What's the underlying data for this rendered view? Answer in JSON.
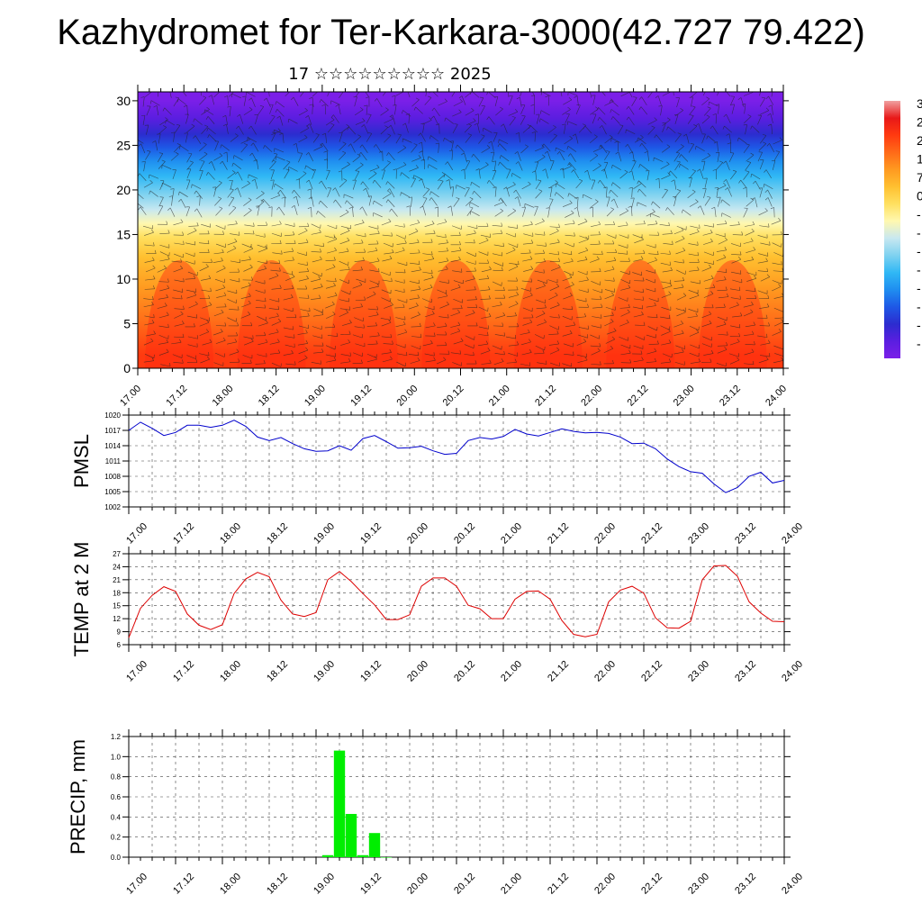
{
  "title": "Kazhydromet for Ter-Karkara-3000(42.727 79.422)",
  "subtitle": "17 ☆☆☆☆☆☆☆☆☆ 2025",
  "colors": {
    "pmsl_line": "#0000cc",
    "temp_line": "#dd0000",
    "precip_bar": "#00ee00",
    "colorbar": [
      "#7b1fe8",
      "#5a1ee0",
      "#2c2ccf",
      "#1e58e6",
      "#1f8ef0",
      "#30b8f5",
      "#7fd2f0",
      "#c8e8f0",
      "#fff8b0",
      "#ffe060",
      "#ffc030",
      "#ff9a20",
      "#ff6a18",
      "#ff3a10",
      "#e81818",
      "#f0a0a0"
    ]
  },
  "colorbar_labels": [
    "3",
    "2",
    "2",
    "1",
    "7",
    "0",
    "-",
    "-",
    "-",
    "-",
    "-",
    "-",
    "-",
    "-"
  ],
  "chart_data": [
    {
      "type": "heatmap",
      "title": "",
      "x_tick_labels": [
        "17.00",
        "17.12",
        "18.00",
        "18.12",
        "19.00",
        "19.12",
        "20.00",
        "20.12",
        "21.00",
        "21.12",
        "22.00",
        "22.12",
        "23.00",
        "23.12",
        "24.00"
      ],
      "y_ticks": [
        0,
        5,
        10,
        15,
        20,
        25,
        30
      ],
      "ylim": [
        0,
        31
      ],
      "note_layers": [
        {
          "from": 0,
          "to": 3,
          "color": "#ff3a10"
        },
        {
          "from": 3,
          "to": 7,
          "color": "#ff6a18"
        },
        {
          "from": 7,
          "to": 11,
          "color": "#ff9a20"
        },
        {
          "from": 11,
          "to": 14,
          "color": "#ffc030"
        },
        {
          "from": 14,
          "to": 15.5,
          "color": "#ffe060"
        },
        {
          "from": 15.5,
          "to": 17,
          "color": "#fff8b0"
        },
        {
          "from": 17,
          "to": 18.5,
          "color": "#c8e8f0"
        },
        {
          "from": 18.5,
          "to": 20.5,
          "color": "#7fd2f0"
        },
        {
          "from": 20.5,
          "to": 22.5,
          "color": "#30b8f5"
        },
        {
          "from": 22.5,
          "to": 24,
          "color": "#1f8ef0"
        },
        {
          "from": 24,
          "to": 25.5,
          "color": "#1e58e6"
        },
        {
          "from": 25.5,
          "to": 27,
          "color": "#2c2ccf"
        },
        {
          "from": 27,
          "to": 29,
          "color": "#5a1ee0"
        },
        {
          "from": 29,
          "to": 31,
          "color": "#7b1fe8"
        }
      ]
    },
    {
      "type": "line",
      "ylabel": "PMSL",
      "ylim": [
        1002,
        1020
      ],
      "y_ticks": [
        1002,
        1005,
        1008,
        1011,
        1014,
        1017,
        1020
      ],
      "x_tick_labels": [
        "17.00",
        "17.12",
        "18.00",
        "18.12",
        "19.00",
        "19.12",
        "20.00",
        "20.12",
        "21.00",
        "21.12",
        "22.00",
        "22.12",
        "23.00",
        "23.12",
        "24.00"
      ],
      "x": [
        0,
        3,
        6,
        9,
        12,
        15,
        18,
        21,
        24,
        27,
        30,
        33,
        36,
        39,
        42,
        45,
        48,
        51,
        54,
        57,
        60,
        63,
        66,
        69,
        72,
        75,
        78,
        81,
        84,
        87,
        90,
        93,
        96,
        99,
        102,
        105,
        108,
        111,
        114,
        117,
        120,
        123,
        126,
        129,
        132,
        135,
        138,
        141,
        144,
        147,
        150,
        153,
        156,
        159,
        162,
        165,
        168
      ],
      "values": [
        1017,
        1018.6,
        1017.4,
        1016,
        1016.6,
        1018,
        1018,
        1017.6,
        1018,
        1019,
        1017.8,
        1015.7,
        1015,
        1015.6,
        1014.4,
        1013.4,
        1012.9,
        1013,
        1014,
        1013.1,
        1015.4,
        1016,
        1014.8,
        1013.5,
        1013.6,
        1013.9,
        1013,
        1012.3,
        1012.5,
        1015,
        1015.6,
        1015.3,
        1015.8,
        1017.2,
        1016.3,
        1015.9,
        1016.6,
        1017.3,
        1016.8,
        1016.5,
        1016.6,
        1016.4,
        1015.7,
        1014.4,
        1014.5,
        1013.4,
        1011.4,
        1009.9,
        1008.9,
        1008.6,
        1006.5,
        1004.8,
        1005.8,
        1008,
        1008.8,
        1006.7,
        1007.2
      ]
    },
    {
      "type": "line",
      "ylabel": "TEMP at 2 M",
      "ylim": [
        6,
        27
      ],
      "y_ticks": [
        6,
        9,
        12,
        15,
        18,
        21,
        24,
        27
      ],
      "x_tick_labels": [
        "17.00",
        "17.12",
        "18.00",
        "18.12",
        "19.00",
        "19.12",
        "20.00",
        "20.12",
        "21.00",
        "21.12",
        "22.00",
        "22.12",
        "23.00",
        "23.12",
        "24.00"
      ],
      "x": [
        0,
        3,
        6,
        9,
        12,
        15,
        18,
        21,
        24,
        27,
        30,
        33,
        36,
        39,
        42,
        45,
        48,
        51,
        54,
        57,
        60,
        63,
        66,
        69,
        72,
        75,
        78,
        81,
        84,
        87,
        90,
        93,
        96,
        99,
        102,
        105,
        108,
        111,
        114,
        117,
        120,
        123,
        126,
        129,
        132,
        135,
        138,
        141,
        144,
        147,
        150,
        153,
        156,
        159,
        162,
        165,
        168
      ],
      "values": [
        7.6,
        14.4,
        17.4,
        19.4,
        18.3,
        13.1,
        10.5,
        9.5,
        10.6,
        17.8,
        21.2,
        22.7,
        21.7,
        16.3,
        13.1,
        12.5,
        13.4,
        21,
        22.9,
        20.6,
        17.8,
        15.2,
        11.8,
        11.8,
        12.9,
        19.5,
        21.4,
        21.4,
        19.5,
        15.1,
        14.3,
        12,
        12,
        16.5,
        18.3,
        18.4,
        16.5,
        11.6,
        8.4,
        7.8,
        8.4,
        15.9,
        18.6,
        19.5,
        17.9,
        12.2,
        9.9,
        9.8,
        11.4,
        21,
        24.2,
        24.3,
        21.8,
        15.9,
        13.3,
        11.4,
        11.3
      ]
    },
    {
      "type": "bar",
      "ylabel": "PRECIP, mm",
      "ylim": [
        0,
        1.2
      ],
      "y_ticks": [
        "0.0",
        "0.2",
        "0.4",
        "0.6",
        "0.8",
        "1.0",
        "1.2"
      ],
      "x_tick_labels": [
        "17.00",
        "17.12",
        "18.00",
        "18.12",
        "19.00",
        "19.12",
        "20.00",
        "20.12",
        "21.00",
        "21.12",
        "22.00",
        "22.12",
        "23.00",
        "23.12",
        "24.00"
      ],
      "x": [
        51,
        54,
        57,
        60,
        63,
        66
      ],
      "values": [
        0.02,
        1.06,
        0.43,
        0.02,
        0.24,
        0.0
      ]
    }
  ]
}
